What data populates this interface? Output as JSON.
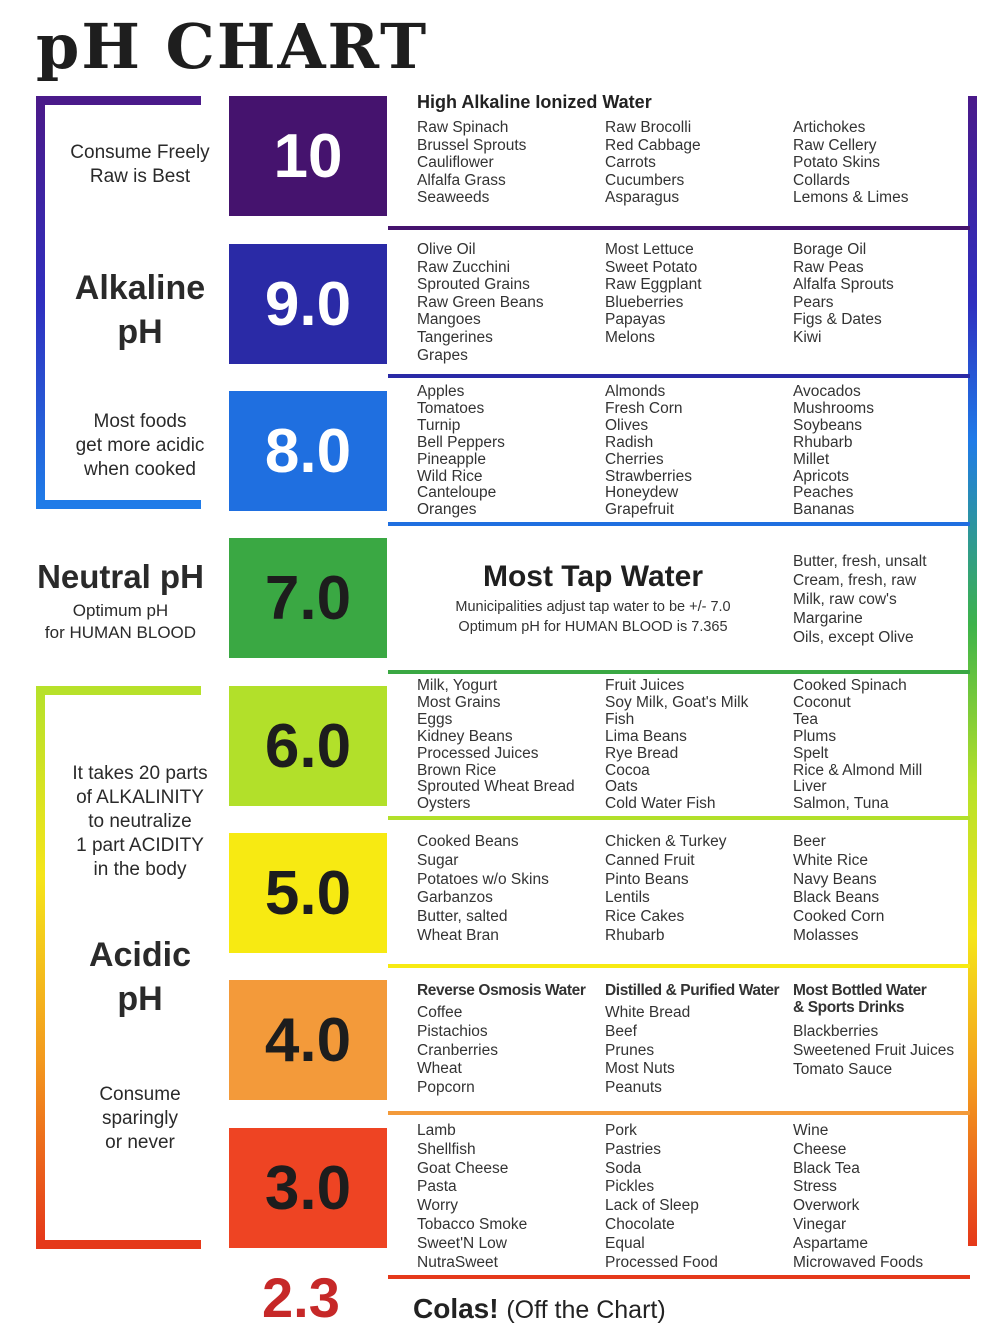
{
  "title": "pH CHART",
  "side": {
    "consume_freely": [
      "Consume Freely",
      "Raw is Best"
    ],
    "alkaline": [
      "Alkaline",
      "pH"
    ],
    "cooked": [
      "Most foods",
      "get more acidic",
      "when cooked"
    ],
    "neutral": "Neutral pH",
    "neutral_sub": [
      "Optimum pH",
      "for HUMAN BLOOD"
    ],
    "ratio": [
      "It takes 20 parts",
      "of ALKALINITY",
      "to neutralize",
      "1 part ACIDITY",
      "in the body"
    ],
    "acidic": [
      "Acidic",
      "pH"
    ],
    "sparingly": [
      "Consume",
      "sparingly",
      "or never"
    ]
  },
  "colors": {
    "ph10": "#45136e",
    "ph9": "#2a2aa6",
    "ph8": "#1f6fe0",
    "ph7": "#3aa843",
    "ph6": "#b2e02a",
    "ph5": "#f7ea12",
    "ph4": "#f39a3a",
    "ph3": "#ee4423"
  },
  "rows": [
    {
      "ph": "10",
      "header": "High Alkaline Ionized Water",
      "columns": [
        [
          "Raw Spinach",
          "Brussel Sprouts",
          "Cauliflower",
          "Alfalfa Grass",
          "Seaweeds"
        ],
        [
          "Raw Brocolli",
          "Red Cabbage",
          "Carrots",
          "Cucumbers",
          "Asparagus"
        ],
        [
          "Artichokes",
          "Raw Cellery",
          "Potato Skins",
          "Collards",
          "Lemons & Limes"
        ]
      ]
    },
    {
      "ph": "9.0",
      "columns": [
        [
          "Olive Oil",
          "Raw Zucchini",
          "Sprouted Grains",
          "Raw Green Beans",
          "Mangoes",
          "Tangerines",
          "Grapes"
        ],
        [
          "Most Lettuce",
          "Sweet Potato",
          "Raw Eggplant",
          "Blueberries",
          "Papayas",
          "Melons"
        ],
        [
          "Borage Oil",
          "Raw Peas",
          "Alfalfa Sprouts",
          "Pears",
          "Figs & Dates",
          "Kiwi"
        ]
      ]
    },
    {
      "ph": "8.0",
      "columns": [
        [
          "Apples",
          "Tomatoes",
          "Turnip",
          "Bell Peppers",
          "Pineapple",
          "Wild Rice",
          "Canteloupe",
          "Oranges"
        ],
        [
          "Almonds",
          "Fresh Corn",
          "Olives",
          "Radish",
          "Cherries",
          "Strawberries",
          "Honeydew",
          "Grapefruit"
        ],
        [
          "Avocados",
          "Mushrooms",
          "Soybeans",
          "Rhubarb",
          "Millet",
          "Apricots",
          "Peaches",
          "Bananas"
        ]
      ]
    },
    {
      "ph": "7.0",
      "tap_title": "Most Tap Water",
      "tap_sub": [
        "Municipalities adjust tap water to be +/- 7.0",
        "Optimum pH for HUMAN BLOOD is 7.365"
      ],
      "columns": [
        [
          "Butter, fresh, unsalt",
          "Cream, fresh, raw",
          "Milk, raw cow's",
          "Margarine",
          "Oils, except Olive"
        ]
      ]
    },
    {
      "ph": "6.0",
      "columns": [
        [
          "Milk, Yogurt",
          "Most Grains",
          "Eggs",
          "Kidney Beans",
          "Processed Juices",
          "Brown Rice",
          "Sprouted Wheat Bread",
          "Oysters"
        ],
        [
          "Fruit Juices",
          "Soy Milk, Goat's Milk",
          "Fish",
          "Lima Beans",
          "Rye Bread",
          "Cocoa",
          "Oats",
          "Cold Water Fish"
        ],
        [
          "Cooked Spinach",
          "Coconut",
          "Tea",
          "Plums",
          "Spelt",
          "Rice & Almond Mill",
          "Liver",
          "Salmon, Tuna"
        ]
      ]
    },
    {
      "ph": "5.0",
      "columns": [
        [
          "Cooked Beans",
          "Sugar",
          "Potatoes w/o Skins",
          "Garbanzos",
          "Butter, salted",
          "Wheat Bran"
        ],
        [
          "Chicken & Turkey",
          "Canned Fruit",
          "Pinto Beans",
          "Lentils",
          "Rice Cakes",
          "Rhubarb"
        ],
        [
          "Beer",
          "White Rice",
          "Navy Beans",
          "Black Beans",
          "Cooked Corn",
          "Molasses"
        ]
      ]
    },
    {
      "ph": "4.0",
      "headers": [
        "Reverse Osmosis Water",
        "Distilled & Purified Water",
        "Most Bottled Water",
        "& Sports Drinks"
      ],
      "columns": [
        [
          "Coffee",
          "Pistachios",
          "Cranberries",
          "Wheat",
          "Popcorn"
        ],
        [
          "White Bread",
          "Beef",
          "Prunes",
          "Most Nuts",
          "Peanuts"
        ],
        [
          "Blackberries",
          "Sweetened Fruit Juices",
          "Tomato Sauce"
        ]
      ]
    },
    {
      "ph": "3.0",
      "columns": [
        [
          "Lamb",
          "Shellfish",
          "Goat Cheese",
          "Pasta",
          "Worry",
          "Tobacco Smoke",
          "Sweet'N Low",
          "NutraSweet"
        ],
        [
          "Pork",
          "Pastries",
          "Soda",
          "Pickles",
          "Lack of Sleep",
          "Chocolate",
          "Equal",
          "Processed Food"
        ],
        [
          "Wine",
          "Cheese",
          "Black Tea",
          "Stress",
          "Overwork",
          "Vinegar",
          "Aspartame",
          "Microwaved Foods"
        ]
      ]
    }
  ],
  "offchart": {
    "value": "2.3",
    "label": "Colas!",
    "sub": "(Off the Chart)"
  }
}
